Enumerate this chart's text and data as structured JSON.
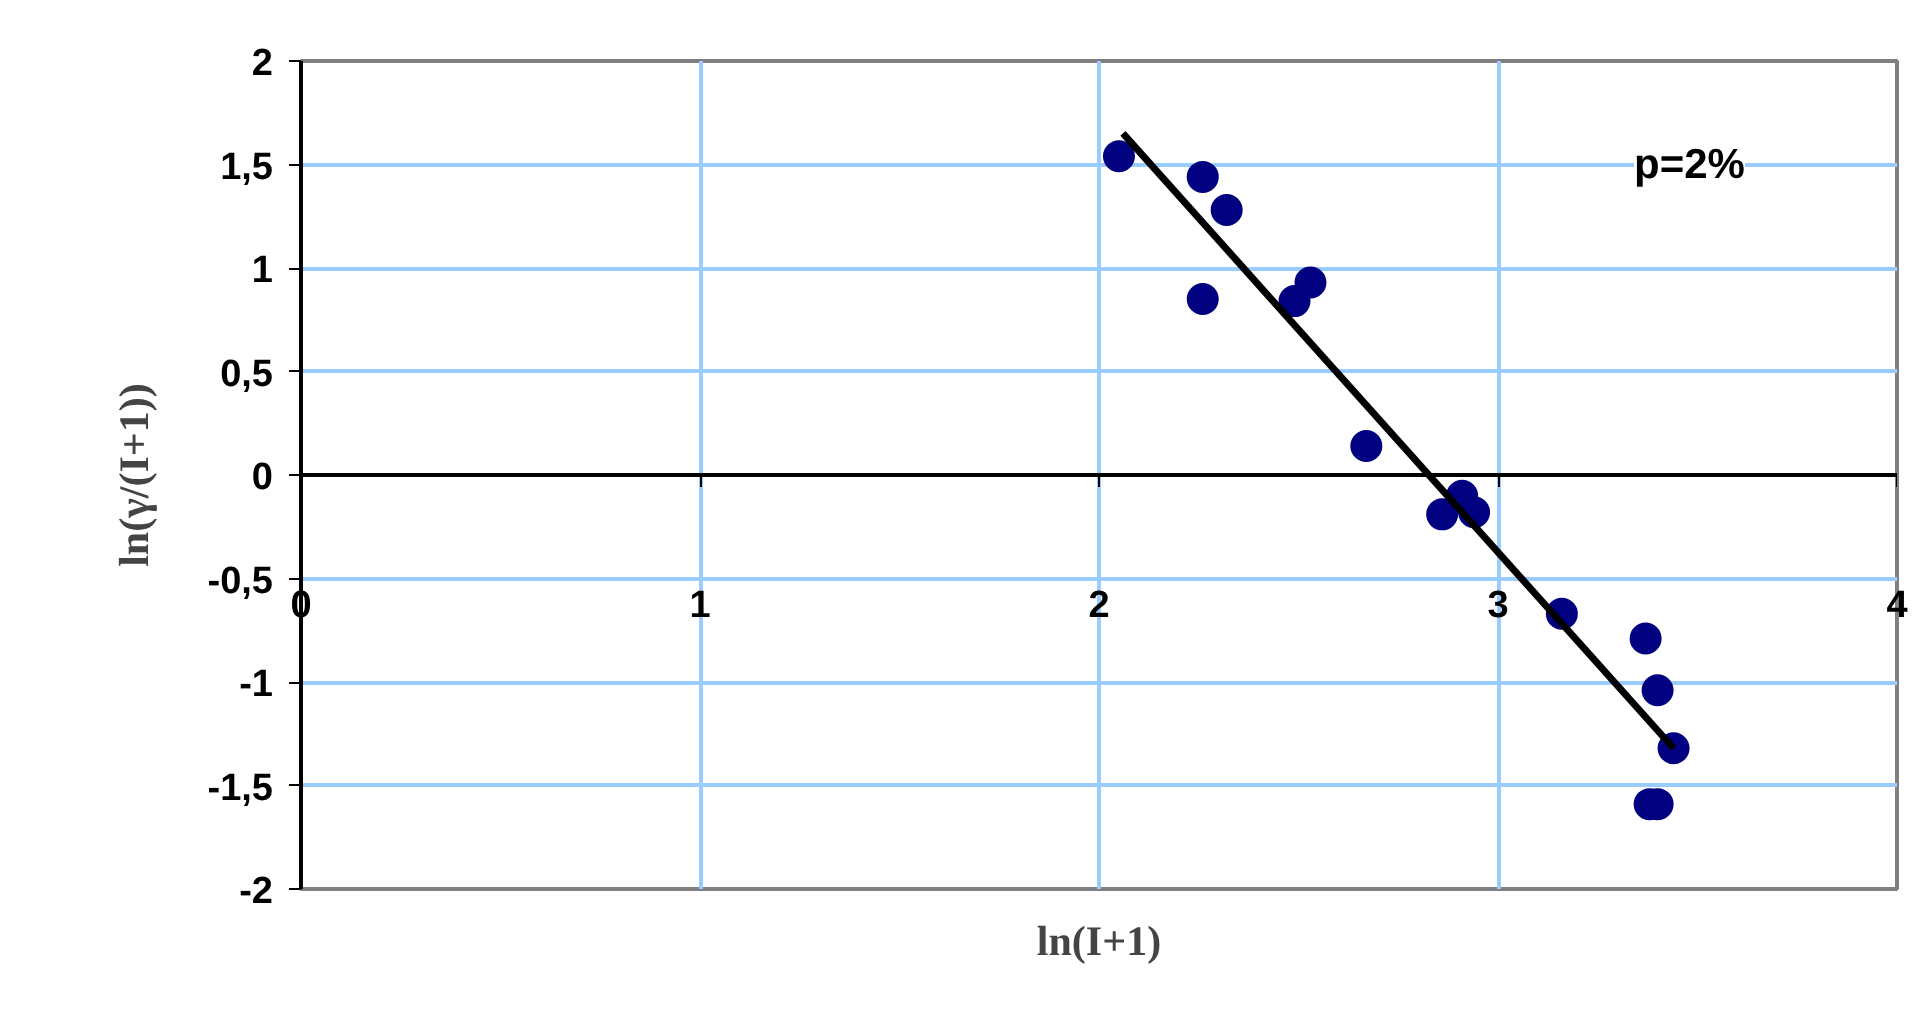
{
  "chart_data": {
    "type": "scatter",
    "xlabel": "ln(I+1)",
    "ylabel": "ln(γ/(I+1))",
    "annotations": [
      "p=2%"
    ],
    "xlim": [
      0,
      4
    ],
    "ylim": [
      -2,
      2
    ],
    "xticks": [
      0,
      1,
      2,
      3,
      4
    ],
    "yticks": [
      -2,
      {
        "value": -1.5,
        "label": "-1,5"
      },
      -1,
      {
        "value": -0.5,
        "label": "-0,5"
      },
      0,
      {
        "value": 0.5,
        "label": "0,5"
      },
      1,
      {
        "value": 1.5,
        "label": "1,5"
      },
      2
    ],
    "grid": true,
    "marker": "circle",
    "series": [
      {
        "color": "#000080",
        "x": [
          2.05,
          2.26,
          2.32,
          2.26,
          2.49,
          2.53,
          2.67,
          2.86,
          2.91,
          2.94,
          3.16,
          3.37,
          3.4,
          3.44,
          3.38,
          3.4
        ],
        "values": [
          1.54,
          1.44,
          1.28,
          0.85,
          0.84,
          0.93,
          0.14,
          -0.19,
          -0.1,
          -0.18,
          -0.67,
          -0.79,
          -1.04,
          -1.32,
          -1.59,
          -1.59
        ]
      },
      {
        "type": "line",
        "marker": "none",
        "color": "#000000",
        "x": [
          2.06,
          3.44
        ],
        "values": [
          1.65,
          -1.32
        ]
      }
    ]
  }
}
